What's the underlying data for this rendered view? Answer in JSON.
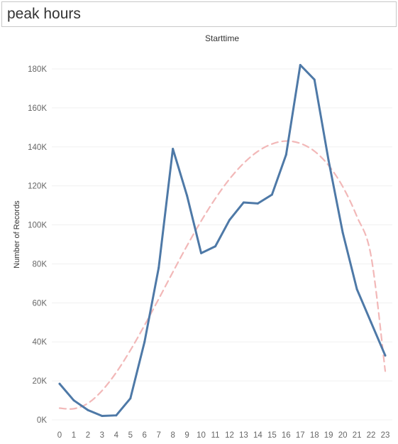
{
  "dashboard": {
    "title": "peak hours"
  },
  "colors": {
    "series_line": "#4e79a7",
    "trend_line": "#f2b8b8",
    "gridline": "#f0f0f0",
    "tick_text": "#666666"
  },
  "chart_data": {
    "type": "line",
    "title": "Starttime",
    "xlabel": "",
    "ylabel": "Number of Records",
    "x": [
      0,
      1,
      2,
      3,
      4,
      5,
      6,
      7,
      8,
      9,
      10,
      11,
      12,
      13,
      14,
      15,
      16,
      17,
      18,
      19,
      20,
      21,
      22,
      23
    ],
    "ylim": [
      0,
      190000
    ],
    "yticks": [
      0,
      20000,
      40000,
      60000,
      80000,
      100000,
      120000,
      140000,
      160000,
      180000
    ],
    "ytick_labels": [
      "0K",
      "20K",
      "40K",
      "60K",
      "80K",
      "100K",
      "120K",
      "140K",
      "160K",
      "180K"
    ],
    "grid": true,
    "series": [
      {
        "values": [
          18500,
          10000,
          5000,
          2000,
          2300,
          11000,
          40000,
          78000,
          139000,
          115000,
          85500,
          89000,
          102500,
          111500,
          111000,
          115500,
          136000,
          182000,
          174500,
          133000,
          96000,
          67000,
          50000,
          33000
        ]
      }
    ],
    "trend": {
      "style": "dashed",
      "values": [
        6000,
        5700,
        8500,
        15000,
        24300,
        35700,
        48500,
        62000,
        75800,
        89300,
        102000,
        113500,
        123500,
        131600,
        137700,
        141500,
        143000,
        141800,
        137800,
        130500,
        119600,
        104300,
        84000,
        25000
      ]
    }
  }
}
